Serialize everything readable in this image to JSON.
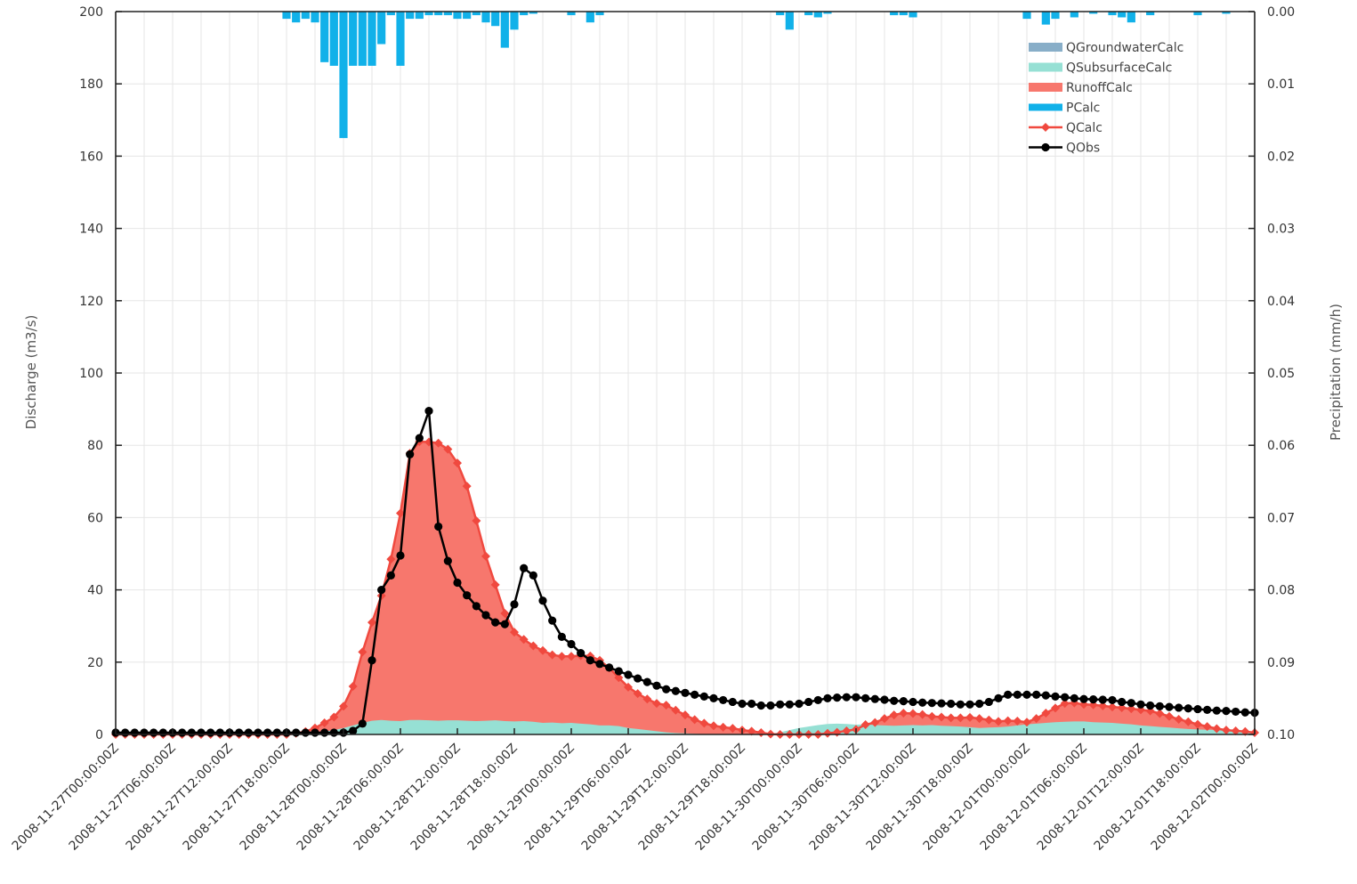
{
  "chart_data": {
    "type": "area",
    "xlabel": "",
    "ylabel": "Discharge (m3/s)",
    "y2label": "Precipitation (mm/h)",
    "ylim": [
      0,
      200
    ],
    "y2lim": [
      0.1,
      0.0
    ],
    "y_ticks": [
      "0",
      "20",
      "40",
      "60",
      "80",
      "100",
      "120",
      "140",
      "160",
      "180",
      "200"
    ],
    "y2_ticks": [
      "0.10",
      "0.09",
      "0.08",
      "0.07",
      "0.06",
      "0.05",
      "0.04",
      "0.03",
      "0.02",
      "0.01",
      "0.00"
    ],
    "x_tick_labels": [
      "2008-11-27T00:00:00Z",
      "2008-11-27T06:00:00Z",
      "2008-11-27T12:00:00Z",
      "2008-11-27T18:00:00Z",
      "2008-11-28T00:00:00Z",
      "2008-11-28T06:00:00Z",
      "2008-11-28T12:00:00Z",
      "2008-11-28T18:00:00Z",
      "2008-11-29T00:00:00Z",
      "2008-11-29T06:00:00Z",
      "2008-11-29T12:00:00Z",
      "2008-11-29T18:00:00Z",
      "2008-11-30T00:00:00Z",
      "2008-11-30T06:00:00Z",
      "2008-11-30T12:00:00Z",
      "2008-11-30T18:00:00Z",
      "2008-12-01T00:00:00Z",
      "2008-12-01T06:00:00Z",
      "2008-12-01T12:00:00Z",
      "2008-12-01T18:00:00Z",
      "2008-12-02T00:00:00Z"
    ],
    "x_start": "2008-11-27T00:00:00Z",
    "x_step_hours": 1,
    "grid": true,
    "legend_position": "top-right",
    "series": [
      {
        "name": "QGroundwaterCalc",
        "kind": "area",
        "color": "#88aec8",
        "values": [
          0,
          0,
          0,
          0,
          0,
          0,
          0,
          0,
          0,
          0,
          0,
          0,
          0,
          0,
          0,
          0,
          0,
          0,
          0,
          0,
          0,
          0,
          0,
          0,
          0,
          0,
          0,
          0,
          0,
          0,
          0,
          0,
          0,
          0,
          0,
          0,
          0,
          0,
          0,
          0,
          0,
          0,
          0,
          0,
          0,
          0,
          0,
          0,
          0,
          0,
          0,
          0,
          0,
          0,
          0,
          0,
          0,
          0,
          0,
          0,
          0,
          0,
          0,
          0,
          0,
          0,
          0,
          0,
          0,
          0,
          0,
          0,
          0,
          0,
          0,
          0,
          0,
          0,
          0,
          0,
          0,
          0,
          0,
          0,
          0,
          0,
          0,
          0,
          0,
          0,
          0,
          0,
          0,
          0,
          0,
          0,
          0,
          0,
          0,
          0,
          0,
          0,
          0,
          0,
          0,
          0,
          0,
          0,
          0,
          0,
          0,
          0,
          0,
          0,
          0,
          0,
          0,
          0,
          0,
          0,
          0
        ]
      },
      {
        "name": "QSubsurfaceCalc",
        "kind": "area",
        "color": "#96e0d4",
        "values": [
          0,
          0,
          0,
          0,
          0,
          0,
          0,
          0,
          0,
          0,
          0,
          0,
          0,
          0,
          0,
          0,
          0,
          0,
          0,
          0,
          0.2,
          0.4,
          0.8,
          1.2,
          1.8,
          2.5,
          3.2,
          3.8,
          4,
          3.8,
          3.7,
          4,
          4,
          3.9,
          3.8,
          3.9,
          3.9,
          3.8,
          3.7,
          3.8,
          3.9,
          3.7,
          3.6,
          3.7,
          3.5,
          3.2,
          3.3,
          3.1,
          3.2,
          3,
          2.8,
          2.5,
          2.5,
          2.3,
          1.8,
          1.5,
          1.2,
          0.9,
          0.6,
          0.4,
          0.3,
          0.2,
          0.1,
          0.1,
          0,
          0,
          0,
          0,
          0,
          0.2,
          0.6,
          1.2,
          1.8,
          2.2,
          2.6,
          2.9,
          3,
          2.9,
          2.7,
          2.8,
          2.6,
          2.5,
          2.4,
          2.5,
          2.6,
          2.5,
          2.6,
          2.4,
          2.3,
          2.2,
          2,
          1.8,
          1.9,
          2,
          2.2,
          2.5,
          2.8,
          3,
          3.2,
          3.4,
          3.5,
          3.6,
          3.6,
          3.4,
          3.3,
          3.2,
          3,
          2.8,
          2.5,
          2.3,
          2.1,
          1.9,
          1.7,
          1.5,
          1.4,
          1.3,
          1.2,
          1,
          0.8,
          0.6,
          0.5
        ]
      },
      {
        "name": "RunoffCalc",
        "kind": "area",
        "color": "#f7776d",
        "values": [
          0,
          0,
          0,
          0,
          0,
          0,
          0,
          0,
          0,
          0,
          0,
          0,
          0,
          0,
          0,
          0,
          0,
          0,
          0,
          0.3,
          0.8,
          1.8,
          3.2,
          4.8,
          7.8,
          13.3,
          22.8,
          31,
          38.4,
          48.5,
          61.2,
          77.8,
          81,
          80.9,
          80.6,
          78.9,
          75.1,
          68.7,
          59.1,
          49.3,
          41.4,
          33.5,
          28.3,
          26.3,
          24.5,
          23.2,
          22,
          21.6,
          21.6,
          21.8,
          21.7,
          20.5,
          18.4,
          15.7,
          13.1,
          11.3,
          9.8,
          8.6,
          8.1,
          6.7,
          5.4,
          4.1,
          3.1,
          2.4,
          2,
          1.7,
          1.2,
          0.9,
          0.5,
          0.1,
          0,
          0,
          0,
          0,
          0,
          0.3,
          0.6,
          1,
          1.4,
          2.7,
          3.3,
          4.4,
          5.4,
          5.9,
          5.8,
          5.5,
          5,
          4.8,
          4.6,
          4.6,
          4.7,
          4.4,
          4,
          3.6,
          3.8,
          3.7,
          3.4,
          4.4,
          5.9,
          7.3,
          8.6,
          8.7,
          8.3,
          8.2,
          7.9,
          7.6,
          7.4,
          7.1,
          6.8,
          6.5,
          5.8,
          5,
          4.2,
          3.5,
          2.8,
          2.2,
          1.6,
          1.2,
          1,
          0.8,
          0.5
        ]
      },
      {
        "name": "PCalc",
        "kind": "bars",
        "color": "#11b1e9",
        "values": [
          0,
          0,
          0,
          0,
          0,
          0,
          0,
          0,
          0,
          0,
          0,
          0,
          0,
          0,
          0,
          0,
          0,
          0,
          0.001,
          0.0015,
          0.001,
          0.0015,
          0.007,
          0.0075,
          0.0175,
          0.0075,
          0.0075,
          0.0075,
          0.0045,
          0.0005,
          0.0075,
          0.001,
          0.001,
          0.0005,
          0.0005,
          0.0005,
          0.001,
          0.001,
          0.0005,
          0.0015,
          0.002,
          0.005,
          0.0025,
          0.0005,
          0.0003,
          0,
          0,
          0,
          0.0005,
          0,
          0.0015,
          0.0005,
          0,
          0,
          0,
          0,
          0,
          0,
          0,
          0,
          0,
          0,
          0,
          0,
          0,
          0,
          0,
          0,
          0,
          0,
          0.0005,
          0.0025,
          0,
          0.0005,
          0.0008,
          0.0003,
          0,
          0,
          0,
          0,
          0,
          0,
          0.0005,
          0.0005,
          0.0008,
          0,
          0,
          0,
          0,
          0,
          0,
          0,
          0,
          0,
          0,
          0,
          0.001,
          0,
          0.0018,
          0.001,
          0,
          0.0008,
          0,
          0.0003,
          0,
          0.0005,
          0.0008,
          0.0015,
          0,
          0.0005,
          0,
          0,
          0,
          0,
          0.0005,
          0,
          0,
          0.0003,
          0,
          0,
          0,
          0,
          0
        ]
      },
      {
        "name": "QCalc",
        "kind": "line",
        "color": "#f0493f",
        "marker": "diamond",
        "values": [
          0,
          0,
          0,
          0,
          0,
          0,
          0,
          0,
          0,
          0,
          0,
          0,
          0,
          0,
          0,
          0,
          0,
          0,
          0,
          0.3,
          0.8,
          1.8,
          3.2,
          4.8,
          7.8,
          13.3,
          22.8,
          31,
          38.4,
          48.5,
          61.2,
          77.8,
          81,
          80.9,
          80.6,
          78.9,
          75.1,
          68.7,
          59.1,
          49.3,
          41.4,
          33.5,
          28.3,
          26.3,
          24.5,
          23.2,
          22,
          21.6,
          21.6,
          21.8,
          21.7,
          20.5,
          18.4,
          15.7,
          13.1,
          11.3,
          9.8,
          8.6,
          8.1,
          6.7,
          5.4,
          4.1,
          3.1,
          2.4,
          2,
          1.7,
          1.2,
          0.9,
          0.5,
          0.1,
          0,
          0,
          0,
          0,
          0,
          0.3,
          0.6,
          1,
          1.4,
          2.7,
          3.3,
          4.4,
          5.4,
          5.9,
          5.8,
          5.5,
          5,
          4.8,
          4.6,
          4.6,
          4.7,
          4.4,
          4,
          3.6,
          3.8,
          3.7,
          3.4,
          4.4,
          5.9,
          7.3,
          8.6,
          8.7,
          8.3,
          8.2,
          7.9,
          7.6,
          7.4,
          7.1,
          6.8,
          6.5,
          5.8,
          5,
          4.2,
          3.5,
          2.8,
          2.2,
          1.6,
          1.2,
          1,
          0.8,
          0.5
        ]
      },
      {
        "name": "QObs",
        "kind": "line",
        "color": "#000000",
        "marker": "circle",
        "values": [
          0.5,
          0.5,
          0.5,
          0.5,
          0.5,
          0.5,
          0.5,
          0.5,
          0.5,
          0.5,
          0.5,
          0.5,
          0.5,
          0.5,
          0.5,
          0.5,
          0.5,
          0.5,
          0.5,
          0.5,
          0.5,
          0.5,
          0.5,
          0.5,
          0.5,
          1,
          3,
          20.5,
          40,
          44,
          49.5,
          77.5,
          82,
          89.5,
          57.5,
          48,
          42,
          38.5,
          35.5,
          33,
          31,
          30.5,
          36,
          46,
          44,
          37,
          31.5,
          27,
          25,
          22.5,
          20.5,
          19.5,
          18.5,
          17.5,
          16.5,
          15.5,
          14.5,
          13.5,
          12.5,
          12,
          11.5,
          11,
          10.5,
          10,
          9.5,
          9,
          8.5,
          8.5,
          8,
          8,
          8.3,
          8.3,
          8.5,
          9,
          9.5,
          10,
          10.2,
          10.3,
          10.3,
          10,
          9.8,
          9.6,
          9.3,
          9.2,
          9,
          8.8,
          8.7,
          8.6,
          8.5,
          8.3,
          8.3,
          8.5,
          9,
          10,
          11,
          11,
          11,
          11,
          10.8,
          10.5,
          10.3,
          10,
          9.8,
          9.7,
          9.6,
          9.5,
          9,
          8.7,
          8.3,
          8,
          7.8,
          7.6,
          7.4,
          7.2,
          7,
          6.8,
          6.6,
          6.5,
          6.3,
          6.1,
          6
        ]
      }
    ]
  }
}
